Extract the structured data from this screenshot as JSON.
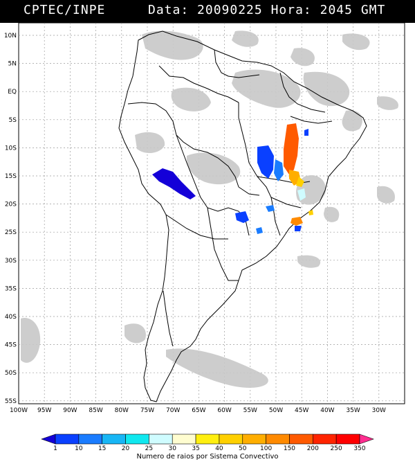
{
  "header": {
    "source": "CPTEC/INPE",
    "date_label": "Data:",
    "date_value": "20090225",
    "hour_label": "Hora:",
    "hour_value": "2045",
    "tz": "GMT"
  },
  "map": {
    "lat_labels": [
      "10N",
      "5N",
      "EQ",
      "5S",
      "10S",
      "15S",
      "20S",
      "25S",
      "30S",
      "35S",
      "40S",
      "45S",
      "50S",
      "55S"
    ],
    "lon_labels": [
      "100W",
      "95W",
      "90W",
      "85W",
      "80W",
      "75W",
      "70W",
      "65W",
      "60W",
      "55W",
      "50W",
      "45W",
      "40W",
      "35W",
      "30W"
    ]
  },
  "legend": {
    "values": [
      "1",
      "10",
      "15",
      "20",
      "25",
      "30",
      "35",
      "40",
      "50",
      "100",
      "150",
      "200",
      "250",
      "350"
    ],
    "colors": [
      "#1400d8",
      "#0a40ff",
      "#1a7cff",
      "#18b6f5",
      "#10e8ef",
      "#cffcff",
      "#fffdd0",
      "#ffef10",
      "#ffd000",
      "#ffae00",
      "#ff8a00",
      "#ff5a00",
      "#ff2400",
      "#ff0000",
      "#ff2d8f"
    ],
    "caption": "Numero de raios por Sistema Convectivo"
  }
}
